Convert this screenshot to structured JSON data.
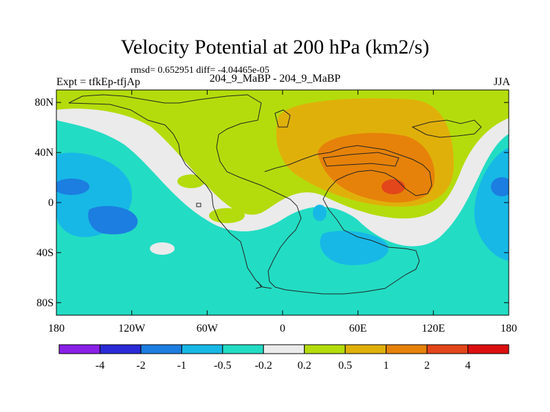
{
  "header": {
    "title": "Velocity Potential at 200 hPa (km2/s)",
    "stats": "rmsd= 0.652951 diff= -4.04465e-05",
    "left_label": "Expt = tfkEp-tfjAp",
    "center_label": "204_9_MaBP - 204_9_MaBP",
    "right_label": "JJA"
  },
  "axes": {
    "lon_ticks": [
      {
        "value": -180,
        "label": "180"
      },
      {
        "value": -120,
        "label": "120W"
      },
      {
        "value": -60,
        "label": "60W"
      },
      {
        "value": 0,
        "label": "0"
      },
      {
        "value": 60,
        "label": "60E"
      },
      {
        "value": 120,
        "label": "120E"
      },
      {
        "value": 180,
        "label": "180"
      }
    ],
    "lat_ticks": [
      {
        "value": 80,
        "label": "80N"
      },
      {
        "value": 40,
        "label": "40N"
      },
      {
        "value": 0,
        "label": "0"
      },
      {
        "value": -40,
        "label": "40S"
      },
      {
        "value": -80,
        "label": "80S"
      }
    ]
  },
  "colorbar": {
    "colors": [
      "#8a1fe6",
      "#2a2ad6",
      "#1c7ee0",
      "#17b8e6",
      "#23dcc4",
      "#ebebeb",
      "#b4dc0c",
      "#e0b00a",
      "#e6820a",
      "#e2461a",
      "#dc0f0f"
    ],
    "labels": [
      "-4",
      "-2",
      "-1",
      "-0.5",
      "-0.2",
      "0.2",
      "0.5",
      "1",
      "2",
      "4"
    ]
  }
}
